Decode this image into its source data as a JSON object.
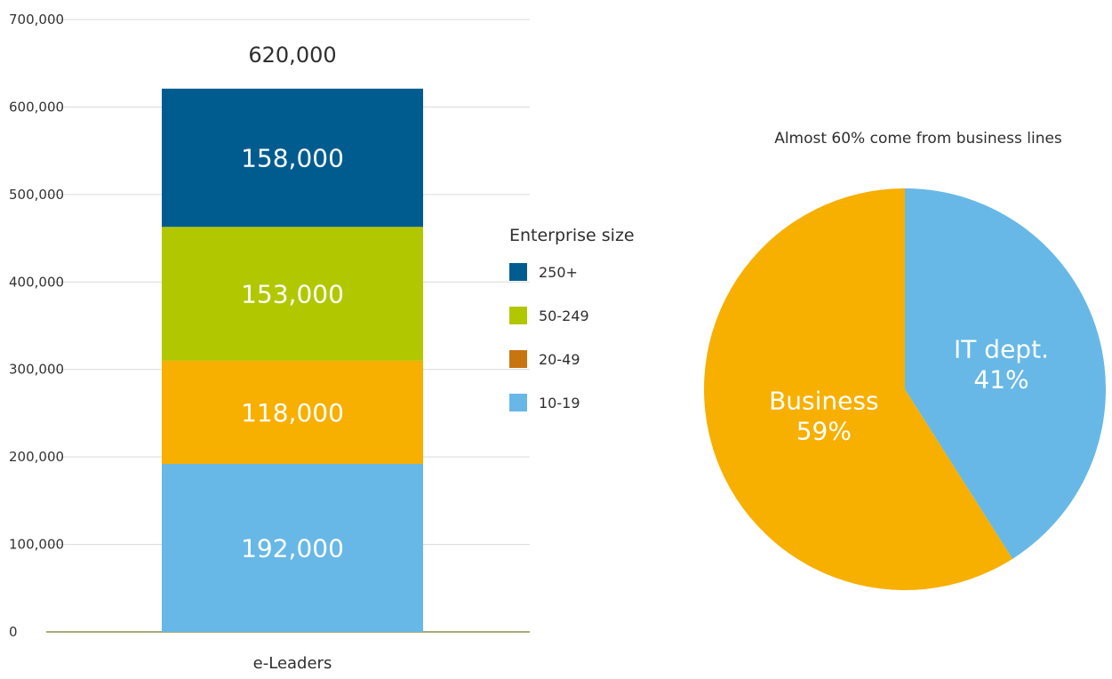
{
  "chart_data": [
    {
      "type": "bar",
      "stacked": true,
      "categories": [
        "e-Leaders"
      ],
      "total_label": "620,000",
      "series": [
        {
          "name": "10-19",
          "values": [
            192000
          ],
          "value_label": "192,000",
          "color": "#67b8e6"
        },
        {
          "name": "20-49",
          "values": [
            118000
          ],
          "value_label": "118,000",
          "color": "#f7af00"
        },
        {
          "name": "50-249",
          "values": [
            153000
          ],
          "value_label": "153,000",
          "color": "#b1c800"
        },
        {
          "name": "250+",
          "values": [
            158000
          ],
          "value_label": "158,000",
          "color": "#005c8e"
        }
      ],
      "legend": {
        "title": "Enterprise size",
        "placement": "right",
        "entries": [
          {
            "label": "250+",
            "color": "#005c8e"
          },
          {
            "label": "50-249",
            "color": "#b1c800"
          },
          {
            "label": "20-49",
            "color": "#c87511"
          },
          {
            "label": "10-19",
            "color": "#67b8e6"
          }
        ]
      },
      "y_ticks": [
        "0",
        "100,000",
        "200,000",
        "300,000",
        "400,000",
        "500,000",
        "600,000",
        "700,000"
      ],
      "ylim": [
        0,
        700000
      ],
      "grid": true
    },
    {
      "type": "pie",
      "title": "Almost 60% come from business lines",
      "slices": [
        {
          "label": "IT dept.",
          "value": 41,
          "value_label": "41%",
          "color": "#67b8e6"
        },
        {
          "label": "Business",
          "value": 59,
          "value_label": "59%",
          "color": "#f7af00"
        }
      ]
    }
  ]
}
